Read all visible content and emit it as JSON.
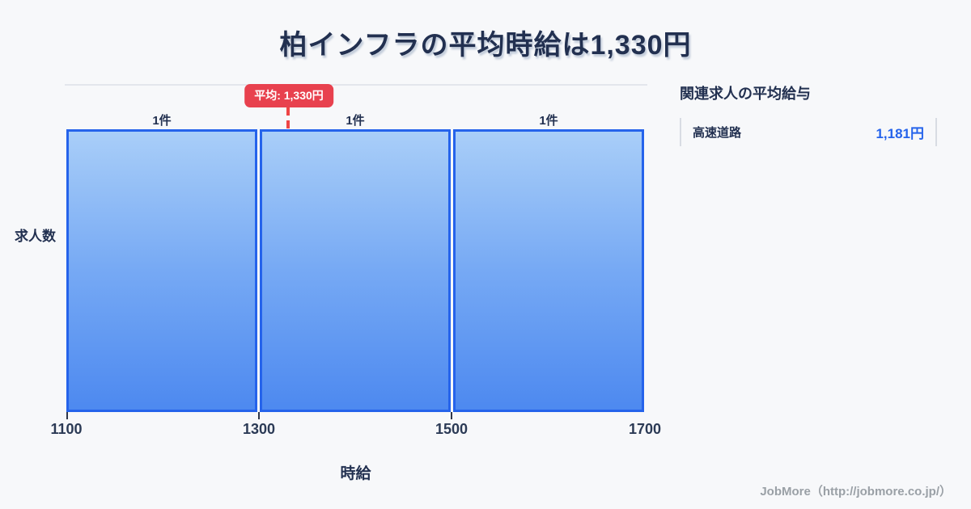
{
  "title": "柏インフラの平均時給は1,330円",
  "chart_data": {
    "type": "bar",
    "title": "柏インフラの平均時給は1,330円",
    "categories": [
      "1100-1300",
      "1300-1500",
      "1500-1700"
    ],
    "values": [
      1,
      1,
      1
    ],
    "bar_labels": [
      "1件",
      "1件",
      "1件"
    ],
    "xlabel": "時給",
    "ylabel": "求人数",
    "x_ticks": [
      "1100",
      "1300",
      "1500",
      "1700"
    ],
    "xlim": [
      1100,
      1700
    ],
    "ylim": [
      0,
      1
    ],
    "grid": false,
    "legend": false,
    "average_value": 1330,
    "average_label": "平均: 1,330円",
    "colors": {
      "bar_fill_top": "#a9cef8",
      "bar_fill_bottom": "#4d89f0",
      "bar_border": "#2563eb",
      "average_line": "#ee4545",
      "average_badge_bg": "#e8414e",
      "title_text": "#223050",
      "background": "#f7f8fa"
    }
  },
  "side_panel": {
    "heading": "関連求人の平均給与",
    "rows": [
      {
        "label": "高速道路",
        "value": "1,181円"
      }
    ],
    "value_color": "#2563eb"
  },
  "footer": {
    "credit": "JobMore（http://jobmore.co.jp/）"
  }
}
